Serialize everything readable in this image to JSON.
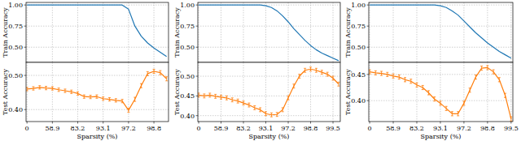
{
  "chart_data": [
    {
      "type": "line",
      "y_label": "Train Accuracy",
      "tick_labels": "y",
      "grid": true,
      "color": "#1f77b4",
      "categories": [
        "0",
        null,
        null,
        null,
        "58.9",
        null,
        null,
        null,
        "83.2",
        null,
        null,
        null,
        "93.1",
        null,
        null,
        null,
        "97.2",
        null,
        null,
        null,
        "98.8",
        null,
        null
      ],
      "values": [
        1.0,
        1.0,
        1.0,
        1.0,
        1.0,
        1.0,
        1.0,
        1.0,
        1.0,
        1.0,
        1.0,
        1.0,
        1.0,
        1.0,
        1.0,
        1.0,
        0.95,
        0.75,
        0.63,
        0.55,
        0.49,
        0.44,
        0.39
      ],
      "ylim": [
        0.32,
        1.03
      ],
      "yticks": [
        {
          "value": 0.5,
          "label": "0.50"
        },
        {
          "value": 0.75,
          "label": "0.75"
        },
        {
          "value": 1.0,
          "label": "1.00"
        }
      ]
    },
    {
      "type": "line",
      "y_label": "Test Accuracy",
      "x_label": "Sparsity (%)",
      "grid": true,
      "color": "#ff7f0e",
      "categories": [
        "0",
        null,
        null,
        null,
        "58.9",
        null,
        null,
        null,
        "83.2",
        null,
        null,
        null,
        "93.1",
        null,
        null,
        null,
        "97.2",
        null,
        null,
        null,
        "98.8",
        null,
        null
      ],
      "values": [
        0.46,
        0.462,
        0.465,
        0.463,
        0.462,
        0.458,
        0.455,
        0.452,
        0.447,
        0.438,
        0.437,
        0.438,
        0.432,
        0.43,
        0.427,
        0.425,
        0.398,
        0.43,
        0.47,
        0.505,
        0.512,
        0.508,
        0.49
      ],
      "errors": [
        0.005,
        0.005,
        0.005,
        0.005,
        0.005,
        0.005,
        0.005,
        0.005,
        0.005,
        0.005,
        0.005,
        0.005,
        0.005,
        0.005,
        0.005,
        0.005,
        0.006,
        0.006,
        0.006,
        0.006,
        0.006,
        0.006,
        0.006
      ],
      "ylim": [
        0.365,
        0.538
      ],
      "yticks": [
        {
          "value": 0.4,
          "label": "0.40"
        },
        {
          "value": 0.5,
          "label": "0.50"
        }
      ]
    },
    {
      "type": "line",
      "y_label": "Train Accuracy",
      "tick_labels": "y",
      "grid": true,
      "color": "#1f77b4",
      "categories": [
        "0",
        null,
        null,
        null,
        "58.9",
        null,
        null,
        null,
        "83.2",
        null,
        null,
        null,
        "93.1",
        null,
        null,
        null,
        "97.2",
        null,
        null,
        null,
        "98.8",
        null,
        null,
        null,
        "99.5",
        null
      ],
      "values": [
        1.0,
        1.0,
        1.0,
        1.0,
        1.0,
        1.0,
        1.0,
        1.0,
        1.0,
        1.0,
        1.0,
        1.0,
        0.99,
        0.97,
        0.93,
        0.87,
        0.8,
        0.72,
        0.65,
        0.58,
        0.52,
        0.47,
        0.43,
        0.4,
        0.37,
        0.34
      ],
      "ylim": [
        0.32,
        1.03
      ],
      "yticks": [
        {
          "value": 0.5,
          "label": "0.50"
        },
        {
          "value": 0.75,
          "label": "0.75"
        },
        {
          "value": 1.0,
          "label": "1.00"
        }
      ]
    },
    {
      "type": "line",
      "y_label": "Test Accuracy",
      "x_label": "Sparsity (%)",
      "grid": true,
      "color": "#ff7f0e",
      "categories": [
        "0",
        null,
        null,
        null,
        "58.9",
        null,
        null,
        null,
        "83.2",
        null,
        null,
        null,
        "93.1",
        null,
        null,
        null,
        "97.2",
        null,
        null,
        null,
        "98.8",
        null,
        null,
        null,
        "99.5",
        null
      ],
      "values": [
        0.452,
        0.45,
        0.452,
        0.449,
        0.447,
        0.445,
        0.44,
        0.437,
        0.432,
        0.427,
        0.42,
        0.415,
        0.405,
        0.402,
        0.403,
        0.415,
        0.445,
        0.475,
        0.5,
        0.515,
        0.518,
        0.515,
        0.51,
        0.505,
        0.495,
        0.48
      ],
      "errors": [
        0.005,
        0.005,
        0.005,
        0.005,
        0.005,
        0.005,
        0.005,
        0.005,
        0.005,
        0.005,
        0.005,
        0.005,
        0.005,
        0.005,
        0.005,
        0.005,
        0.005,
        0.005,
        0.005,
        0.005,
        0.005,
        0.005,
        0.005,
        0.005,
        0.005,
        0.005
      ],
      "ylim": [
        0.385,
        0.535
      ],
      "yticks": [
        {
          "value": 0.4,
          "label": "0.40"
        },
        {
          "value": 0.45,
          "label": "0.45"
        },
        {
          "value": 0.5,
          "label": "0.50"
        }
      ]
    },
    {
      "type": "line",
      "y_label": "Train Accuracy",
      "tick_labels": "y",
      "grid": true,
      "color": "#1f77b4",
      "categories": [
        "0",
        null,
        null,
        null,
        "58.9",
        null,
        null,
        null,
        "83.2",
        null,
        null,
        null,
        "93.1",
        null,
        null,
        null,
        "97.2",
        null,
        null,
        null,
        "98.8",
        null,
        null,
        null,
        "99.5"
      ],
      "values": [
        1.0,
        1.0,
        1.0,
        1.0,
        1.0,
        1.0,
        1.0,
        1.0,
        1.0,
        1.0,
        1.0,
        1.0,
        0.99,
        0.97,
        0.93,
        0.88,
        0.81,
        0.74,
        0.67,
        0.61,
        0.55,
        0.5,
        0.45,
        0.41,
        0.37
      ],
      "ylim": [
        0.32,
        1.03
      ],
      "yticks": [
        {
          "value": 0.5,
          "label": "0.50"
        },
        {
          "value": 0.75,
          "label": "0.75"
        },
        {
          "value": 1.0,
          "label": "1.00"
        }
      ]
    },
    {
      "type": "line",
      "y_label": "Test Accuracy",
      "x_label": "Sparsity (%)",
      "grid": true,
      "color": "#ff7f0e",
      "categories": [
        "0",
        null,
        null,
        null,
        "58.9",
        null,
        null,
        null,
        "83.2",
        null,
        null,
        null,
        "93.1",
        null,
        null,
        null,
        "97.2",
        null,
        null,
        null,
        "98.8",
        null,
        null,
        null,
        "99.5"
      ],
      "values": [
        0.455,
        0.453,
        0.452,
        0.45,
        0.447,
        0.445,
        0.44,
        0.437,
        0.43,
        0.425,
        0.415,
        0.403,
        0.395,
        0.385,
        0.375,
        0.375,
        0.395,
        0.42,
        0.445,
        0.462,
        0.463,
        0.455,
        0.44,
        0.41,
        0.365
      ],
      "errors": [
        0.004,
        0.004,
        0.004,
        0.004,
        0.004,
        0.004,
        0.004,
        0.004,
        0.004,
        0.004,
        0.004,
        0.004,
        0.004,
        0.004,
        0.004,
        0.004,
        0.004,
        0.004,
        0.004,
        0.004,
        0.004,
        0.004,
        0.004,
        0.004,
        0.004
      ],
      "ylim": [
        0.36,
        0.473
      ],
      "yticks": [
        {
          "value": 0.4,
          "label": "0.40"
        },
        {
          "value": 0.45,
          "label": "0.45"
        }
      ]
    }
  ]
}
